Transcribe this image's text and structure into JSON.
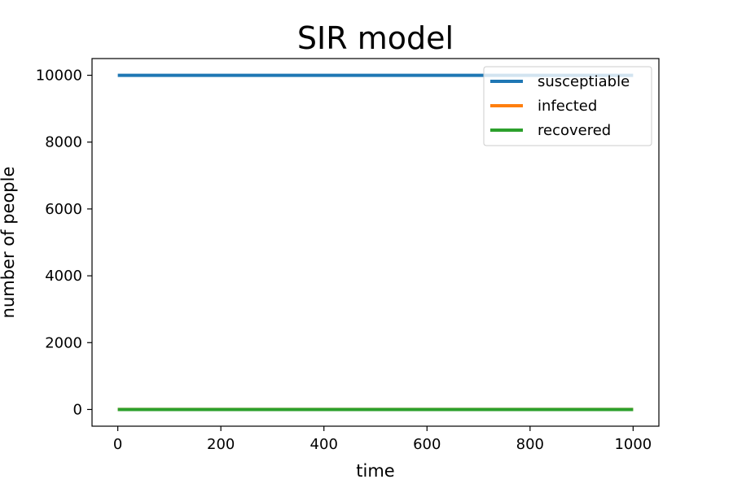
{
  "chart_data": {
    "type": "line",
    "title": "SIR model",
    "xlabel": "time",
    "ylabel": "number of people",
    "xlim": [
      -50,
      1050
    ],
    "ylim": [
      -500,
      10500
    ],
    "xticks": [
      0,
      200,
      400,
      600,
      800,
      1000
    ],
    "yticks": [
      0,
      2000,
      4000,
      6000,
      8000,
      10000
    ],
    "grid": false,
    "legend_position": "upper right",
    "series": [
      {
        "name": "susceptiable",
        "color": "#1f77b4",
        "x": [
          0,
          1000
        ],
        "y": [
          9999,
          9999
        ]
      },
      {
        "name": "infected",
        "color": "#ff7f0e",
        "x": [
          0,
          1000
        ],
        "y": [
          1,
          1
        ]
      },
      {
        "name": "recovered",
        "color": "#2ca02c",
        "x": [
          0,
          1000
        ],
        "y": [
          0,
          0
        ]
      }
    ]
  }
}
